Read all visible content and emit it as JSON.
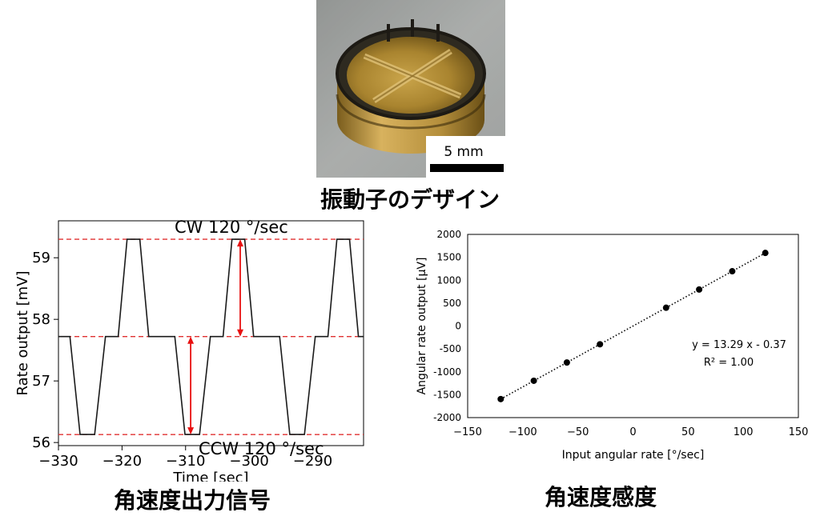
{
  "photo": {
    "scale_bar_label": "5 mm",
    "caption": "振動子のデザイン"
  },
  "colors": {
    "signal": "#1a1a1a",
    "reference_lines": "#e03030",
    "arrows": "#e81010",
    "points": "#000000"
  },
  "left_caption": "角速度出力信号",
  "right_caption": "角速度感度",
  "chart_data": [
    {
      "type": "line",
      "xlabel": "Time [sec]",
      "ylabel": "Rate output [mV]",
      "xlim": [
        -330,
        -282
      ],
      "ylim": [
        55.95,
        59.6
      ],
      "xticks": [
        -330,
        -320,
        -310,
        -300,
        -290
      ],
      "xtick_labels": [
        "−330",
        "−320",
        "−310",
        "−300",
        "−290"
      ],
      "yticks": [
        56,
        57,
        58,
        59
      ],
      "ytick_labels": [
        "56",
        "57",
        "58",
        "59"
      ],
      "grid": false,
      "series": [
        {
          "x": [
            -330,
            -328.2,
            -326.6,
            -324.3,
            -322.6,
            -320.6,
            -319.2,
            -317.2,
            -315.8,
            -313.8,
            -311.7,
            -310.1,
            -307.8,
            -306.1,
            -304.1,
            -302.7,
            -300.7,
            -299.3,
            -297.3,
            -295.2,
            -293.6,
            -291.3,
            -289.6,
            -287.6,
            -286.2,
            -284.2,
            -282.8,
            -282
          ],
          "y": [
            57.72,
            57.72,
            56.13,
            56.13,
            57.72,
            57.72,
            59.3,
            59.3,
            57.72,
            57.72,
            57.72,
            56.13,
            56.13,
            57.72,
            57.72,
            59.3,
            59.3,
            57.72,
            57.72,
            57.72,
            56.13,
            56.13,
            57.72,
            57.72,
            59.3,
            59.3,
            57.72,
            57.72
          ]
        }
      ],
      "reference_lines": [
        59.3,
        57.72,
        56.13
      ],
      "annotations": [
        {
          "text": "CW 120 °/sec"
        },
        {
          "text": "CCW 120 °/sec"
        }
      ],
      "arrows": [
        {
          "x": -301.4,
          "from": 59.3,
          "to": 57.72
        },
        {
          "x": -309.2,
          "from": 57.72,
          "to": 56.13
        }
      ]
    },
    {
      "type": "scatter",
      "xlabel": "Input angular rate [°/sec]",
      "ylabel": "Angular rate output [μV]",
      "xlim": [
        -150,
        150
      ],
      "ylim": [
        -2000,
        2000
      ],
      "xticks": [
        -150,
        -100,
        -50,
        0,
        50,
        100,
        150
      ],
      "xtick_labels": [
        "−150",
        "−100",
        "−50",
        "0",
        "50",
        "100",
        "150"
      ],
      "yticks": [
        -2000,
        -1500,
        -1000,
        -500,
        0,
        500,
        1000,
        1500,
        2000
      ],
      "ytick_labels": [
        "-2000",
        "-1500",
        "-1000",
        "-500",
        "0",
        "500",
        "1000",
        "1500",
        "2000"
      ],
      "grid": false,
      "x": [
        -120,
        -90,
        -60,
        -30,
        30,
        60,
        90,
        120
      ],
      "y": [
        -1595,
        -1196,
        -797,
        -399,
        399,
        797,
        1196,
        1595
      ],
      "trendline": {
        "type": "linear",
        "style": "dotted",
        "slope": 13.29,
        "intercept": -0.37
      },
      "equation_label": "y = 13.29 x - 0.37",
      "r2_label": "R² = 1.00"
    }
  ]
}
